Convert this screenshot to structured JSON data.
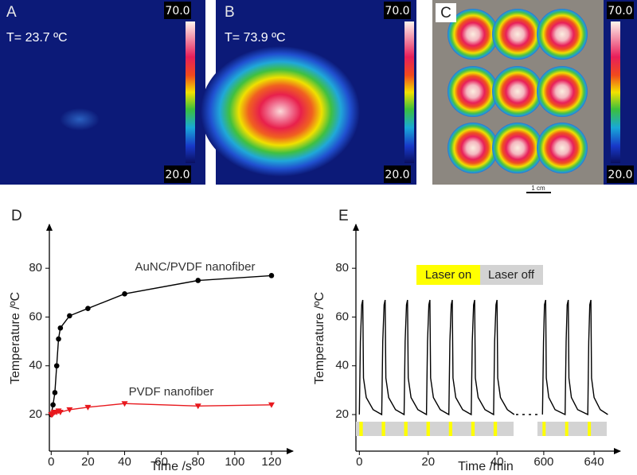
{
  "panels": [
    {
      "label": "A",
      "temperature": "T= 23.7 ºC",
      "colorbar": {
        "max": "70.0",
        "min": "20.0"
      }
    },
    {
      "label": "B",
      "temperature": "T= 73.9 ºC",
      "colorbar": {
        "max": "70.0",
        "min": "20.0"
      }
    },
    {
      "label": "C",
      "colorbar": {
        "max": "70.0",
        "min": "20.0"
      },
      "scale_bar": "1 cm"
    }
  ],
  "chart_data": [
    {
      "type": "line",
      "label": "D",
      "x_label": "Time /s",
      "y_label": "Temperature /ºC",
      "xlim": [
        -1,
        130
      ],
      "xticks": [
        0,
        20,
        40,
        60,
        80,
        100,
        120
      ],
      "ylim": [
        5,
        98
      ],
      "yticks": [
        20,
        40,
        60,
        80
      ],
      "series": [
        {
          "name": "AuNC/PVDF nanofiber",
          "color": "#000000",
          "marker": "circle",
          "x": [
            0,
            1,
            2,
            3,
            4,
            5,
            10,
            20,
            40,
            80,
            120
          ],
          "values": [
            20,
            24,
            29,
            40,
            51,
            55.5,
            60.5,
            63.5,
            69.5,
            75,
            77
          ]
        },
        {
          "name": "PVDF  nanofiber",
          "color": "#e8191e",
          "marker": "triangle",
          "x": [
            0,
            0.5,
            1,
            1.5,
            2,
            3,
            4,
            5,
            10,
            20,
            40,
            80,
            120
          ],
          "values": [
            20,
            20,
            20.5,
            21,
            21,
            21,
            21.5,
            21,
            22,
            23,
            24.5,
            23.5,
            24
          ]
        }
      ]
    },
    {
      "type": "broken-line",
      "label": "E",
      "x_label": "Time /min",
      "y_label": "Temperature /ºC",
      "x_segments": [
        {
          "xlim": [
            -1,
            45.5
          ],
          "xticks": [
            0,
            20,
            40
          ]
        },
        {
          "xlim": [
            595,
            652
          ],
          "xticks": [
            600,
            640
          ]
        }
      ],
      "ylim": [
        5,
        98
      ],
      "yticks": [
        20,
        40,
        60,
        80
      ],
      "series": [
        {
          "color": "#000000",
          "x": [
            0,
            0.3,
            0.7,
            1,
            1.2,
            2,
            4,
            6.5,
            6.8,
            7.2,
            7.5,
            7.7,
            8.5,
            10.5,
            13,
            13.3,
            13.7,
            14,
            14.2,
            15,
            17,
            19.5,
            19.8,
            20.2,
            20.5,
            20.7,
            21.5,
            23.5,
            26,
            26.3,
            26.7,
            27,
            27.2,
            28,
            30,
            32.5,
            32.8,
            33.2,
            33.5,
            33.7,
            34.5,
            36.5,
            39,
            39.3,
            39.7,
            40,
            40.2,
            41,
            43,
            45,
            null,
            599,
            599.8,
            600.6,
            601.5,
            602,
            604,
            609,
            617,
            617.8,
            618.6,
            619.5,
            620,
            622,
            627,
            635,
            635.8,
            636.6,
            637.5,
            638,
            640,
            645,
            651
          ],
          "values": [
            20,
            50,
            65,
            67,
            35,
            27,
            22,
            20,
            50,
            65,
            67,
            35,
            27,
            22,
            20,
            50,
            65,
            67,
            35,
            27,
            22,
            20,
            50,
            65,
            67,
            35,
            27,
            22,
            20,
            50,
            65,
            67,
            35,
            27,
            22,
            20,
            50,
            65,
            67,
            35,
            27,
            22,
            20,
            50,
            65,
            67,
            35,
            27,
            22,
            20,
            null,
            20,
            50,
            65,
            67,
            35,
            27,
            22,
            20,
            50,
            65,
            67,
            35,
            27,
            22,
            20,
            50,
            65,
            67,
            35,
            27,
            22,
            20
          ]
        }
      ],
      "laser": {
        "on_label": "Laser on",
        "off_label": "Laser off",
        "on_color": "#ffff00",
        "off_color": "#d3d3d3",
        "on": [
          [
            0,
            1
          ],
          [
            6.5,
            7.5
          ],
          [
            13,
            14
          ],
          [
            19.5,
            20.5
          ],
          [
            26,
            27
          ],
          [
            32.5,
            33.5
          ],
          [
            39,
            40
          ],
          [
            599,
            601.5
          ],
          [
            617,
            619.5
          ],
          [
            635,
            637.5
          ]
        ]
      }
    }
  ]
}
